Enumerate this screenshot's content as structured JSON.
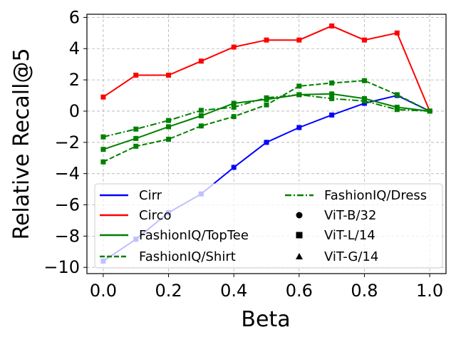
{
  "chart_data": {
    "type": "line",
    "title": "",
    "xlabel": "Beta",
    "ylabel": "Relative Recall@5",
    "xlim": [
      -0.05,
      1.05
    ],
    "ylim": [
      -10.4,
      6.2
    ],
    "xticks": [
      0.0,
      0.2,
      0.4,
      0.6,
      0.8,
      1.0
    ],
    "xtick_labels": [
      "0.0",
      "0.2",
      "0.4",
      "0.6",
      "0.8",
      "1.0"
    ],
    "yticks": [
      -10,
      -8,
      -6,
      -4,
      -2,
      0,
      2,
      4,
      6
    ],
    "ytick_labels": [
      "−10",
      "−8",
      "−6",
      "−4",
      "−2",
      "0",
      "2",
      "4",
      "6"
    ],
    "grid": true,
    "legend_position": "lower-left",
    "x": [
      0.0,
      0.1,
      0.2,
      0.3,
      0.4,
      0.5,
      0.6,
      0.7,
      0.8,
      0.9,
      1.0
    ],
    "series": [
      {
        "name": "Cirr",
        "color": "#0000ff",
        "linestyle": "solid",
        "marker": "square",
        "values": [
          -9.6,
          -8.2,
          -6.5,
          -5.3,
          -3.6,
          -2.0,
          -1.05,
          -0.25,
          0.5,
          1.0,
          0.0
        ]
      },
      {
        "name": "Circo",
        "color": "#ff0000",
        "linestyle": "solid",
        "marker": "square",
        "values": [
          0.9,
          2.3,
          2.3,
          3.2,
          4.1,
          4.55,
          4.55,
          5.45,
          4.55,
          5.0,
          0.0
        ]
      },
      {
        "name": "FashionIQ/TopTee",
        "color": "#008000",
        "linestyle": "solid",
        "marker": "square",
        "values": [
          -2.45,
          -1.75,
          -1.0,
          -0.3,
          0.5,
          0.75,
          1.05,
          1.1,
          0.8,
          0.25,
          0.0
        ]
      },
      {
        "name": "FashionIQ/Shirt",
        "color": "#008000",
        "linestyle": "dashed",
        "marker": "square",
        "values": [
          -3.25,
          -2.25,
          -1.8,
          -0.95,
          -0.35,
          0.4,
          1.6,
          1.8,
          1.95,
          1.05,
          0.0
        ]
      },
      {
        "name": "FashionIQ/Dress",
        "color": "#008000",
        "linestyle": "dashdot",
        "marker": "square",
        "values": [
          -1.65,
          -1.15,
          -0.6,
          0.05,
          0.25,
          0.85,
          1.05,
          0.8,
          0.65,
          0.1,
          0.0
        ]
      }
    ],
    "marker_legend": [
      {
        "label": "ViT-B/32",
        "marker": "circle"
      },
      {
        "label": "ViT-L/14",
        "marker": "square"
      },
      {
        "label": "ViT-G/14",
        "marker": "triangle"
      }
    ],
    "legend_bg": "#ffffff",
    "grid_color": "#b0b0b0"
  }
}
